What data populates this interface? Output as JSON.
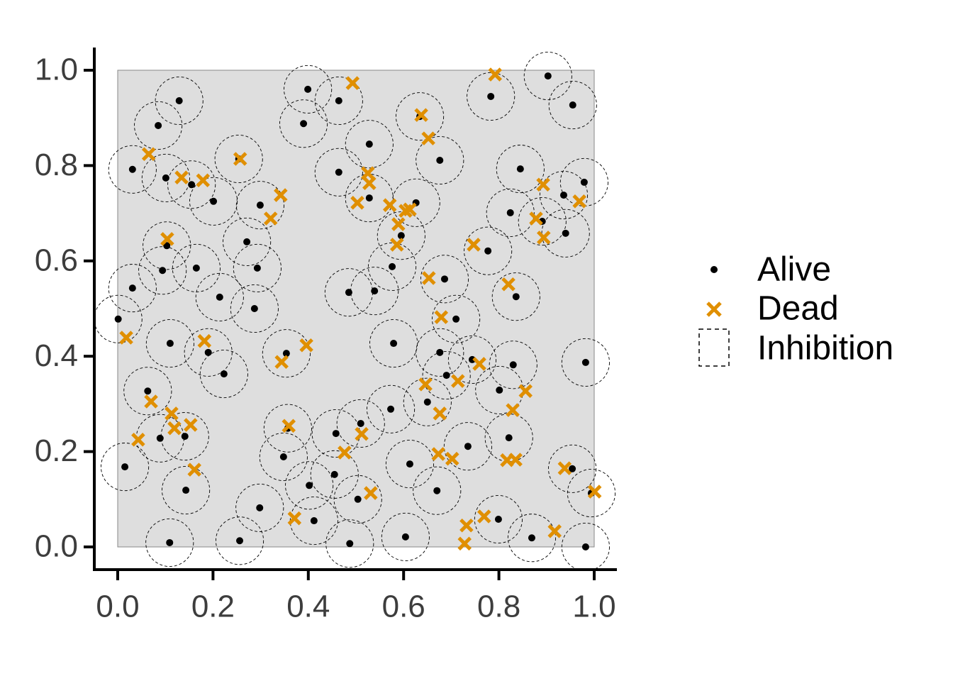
{
  "chart_data": {
    "type": "scatter",
    "xlim": [
      0,
      1
    ],
    "ylim": [
      0,
      1
    ],
    "xticks": [
      {
        "value": 0,
        "label": "0.0"
      },
      0.2,
      0.4,
      0.6,
      0.8,
      {
        "value": 1,
        "label": "1.0"
      }
    ],
    "yticks": [
      {
        "value": 0,
        "label": "0.0"
      },
      0.2,
      0.4,
      0.6,
      0.8,
      {
        "value": 1,
        "label": "1.0"
      }
    ],
    "series": [
      {
        "name": "Alive",
        "color": "#000000",
        "x": [
          0.129,
          0.085,
          0.155,
          0.101,
          0.031,
          0.254,
          0.201,
          0.299,
          0.271,
          0.103,
          0.094,
          0.165,
          0.031,
          0.214,
          0.287,
          0.293,
          0.001,
          0.11,
          0.19,
          0.223,
          0.063,
          0.141,
          0.089,
          0.143,
          0.015,
          0.109,
          0.256,
          0.298,
          0.357,
          0.348,
          0.354,
          0.402,
          0.412,
          0.458,
          0.455,
          0.51,
          0.504,
          0.487,
          0.39,
          0.399,
          0.464,
          0.528,
          0.464,
          0.528,
          0.626,
          0.595,
          0.576,
          0.485,
          0.539,
          0.579,
          0.573,
          0.65,
          0.613,
          0.604,
          0.67,
          0.676,
          0.69,
          0.71,
          0.686,
          0.676,
          0.634,
          0.744,
          0.735,
          0.799,
          0.869,
          0.801,
          0.821,
          0.83,
          0.836,
          0.777,
          0.824,
          0.845,
          0.891,
          0.936,
          0.94,
          0.979,
          0.982,
          0.954,
          0.994,
          0.982,
          0.955,
          0.903,
          0.783
        ],
        "y": [
          0.936,
          0.884,
          0.76,
          0.774,
          0.792,
          0.814,
          0.725,
          0.717,
          0.64,
          0.632,
          0.58,
          0.585,
          0.543,
          0.524,
          0.5,
          0.585,
          0.478,
          0.427,
          0.408,
          0.363,
          0.327,
          0.232,
          0.228,
          0.119,
          0.168,
          0.009,
          0.013,
          0.082,
          0.249,
          0.189,
          0.406,
          0.129,
          0.055,
          0.238,
          0.152,
          0.259,
          0.1,
          0.007,
          0.888,
          0.96,
          0.936,
          0.845,
          0.786,
          0.732,
          0.722,
          0.653,
          0.588,
          0.534,
          0.537,
          0.427,
          0.289,
          0.304,
          0.174,
          0.021,
          0.118,
          0.408,
          0.36,
          0.478,
          0.562,
          0.811,
          0.903,
          0.393,
          0.211,
          0.058,
          0.019,
          0.329,
          0.229,
          0.382,
          0.525,
          0.621,
          0.701,
          0.793,
          0.683,
          0.738,
          0.658,
          0.765,
          0.387,
          0.164,
          0.113,
          0.0,
          0.927,
          0.988,
          0.945
        ]
      },
      {
        "name": "Dead",
        "color": "#e08f00",
        "x": [
          0.065,
          0.134,
          0.179,
          0.257,
          0.342,
          0.321,
          0.104,
          0.018,
          0.182,
          0.07,
          0.113,
          0.119,
          0.153,
          0.043,
          0.161,
          0.344,
          0.396,
          0.359,
          0.371,
          0.476,
          0.512,
          0.531,
          0.493,
          0.503,
          0.525,
          0.528,
          0.571,
          0.604,
          0.613,
          0.589,
          0.586,
          0.637,
          0.652,
          0.653,
          0.679,
          0.646,
          0.676,
          0.714,
          0.759,
          0.673,
          0.702,
          0.732,
          0.728,
          0.769,
          0.747,
          0.82,
          0.792,
          0.893,
          0.878,
          0.894,
          0.969,
          0.856,
          0.829,
          0.817,
          0.835,
          0.938,
          0.917,
          1.001
        ],
        "y": [
          0.824,
          0.775,
          0.769,
          0.814,
          0.738,
          0.689,
          0.646,
          0.439,
          0.432,
          0.305,
          0.28,
          0.249,
          0.256,
          0.225,
          0.162,
          0.388,
          0.423,
          0.254,
          0.06,
          0.198,
          0.237,
          0.113,
          0.973,
          0.722,
          0.784,
          0.763,
          0.717,
          0.705,
          0.708,
          0.677,
          0.634,
          0.906,
          0.857,
          0.564,
          0.482,
          0.341,
          0.28,
          0.348,
          0.384,
          0.195,
          0.185,
          0.045,
          0.007,
          0.064,
          0.634,
          0.551,
          0.991,
          0.76,
          0.689,
          0.649,
          0.725,
          0.327,
          0.287,
          0.182,
          0.183,
          0.165,
          0.033,
          0.116
        ]
      },
      {
        "name": "Inhibition",
        "radius": 0.05
      }
    ]
  }
}
